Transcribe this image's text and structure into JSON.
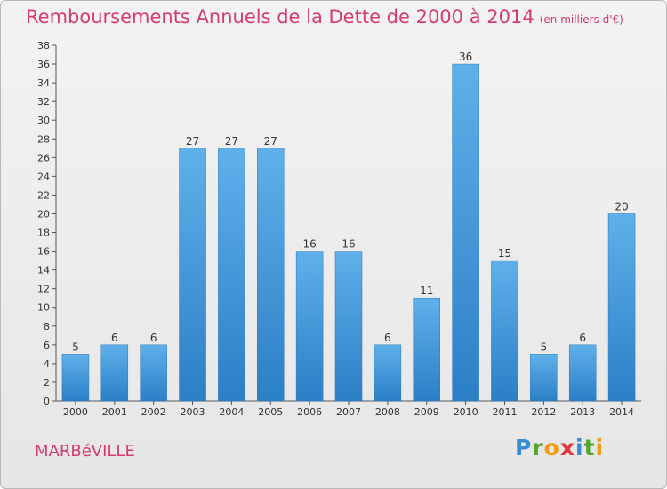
{
  "chart_data": {
    "type": "bar",
    "title": "Remboursements Annuels de la Dette de 2000 à 2014",
    "unit_note": "(en milliers d'€)",
    "categories": [
      "2000",
      "2001",
      "2002",
      "2003",
      "2004",
      "2005",
      "2006",
      "2007",
      "2008",
      "2009",
      "2010",
      "2011",
      "2012",
      "2013",
      "2014"
    ],
    "values": [
      5,
      6,
      6,
      27,
      27,
      27,
      16,
      16,
      6,
      11,
      36,
      15,
      5,
      6,
      20
    ],
    "ylim": [
      0,
      38
    ],
    "yticks": [
      0,
      2,
      4,
      6,
      8,
      10,
      12,
      14,
      16,
      18,
      20,
      22,
      24,
      26,
      28,
      30,
      32,
      34,
      36,
      38
    ],
    "grid": false,
    "bar_color": "#4a9fe0"
  },
  "commune": "MARBéVILLE",
  "logo": [
    "P",
    "r",
    "o",
    "x",
    "i",
    "t",
    "i"
  ]
}
